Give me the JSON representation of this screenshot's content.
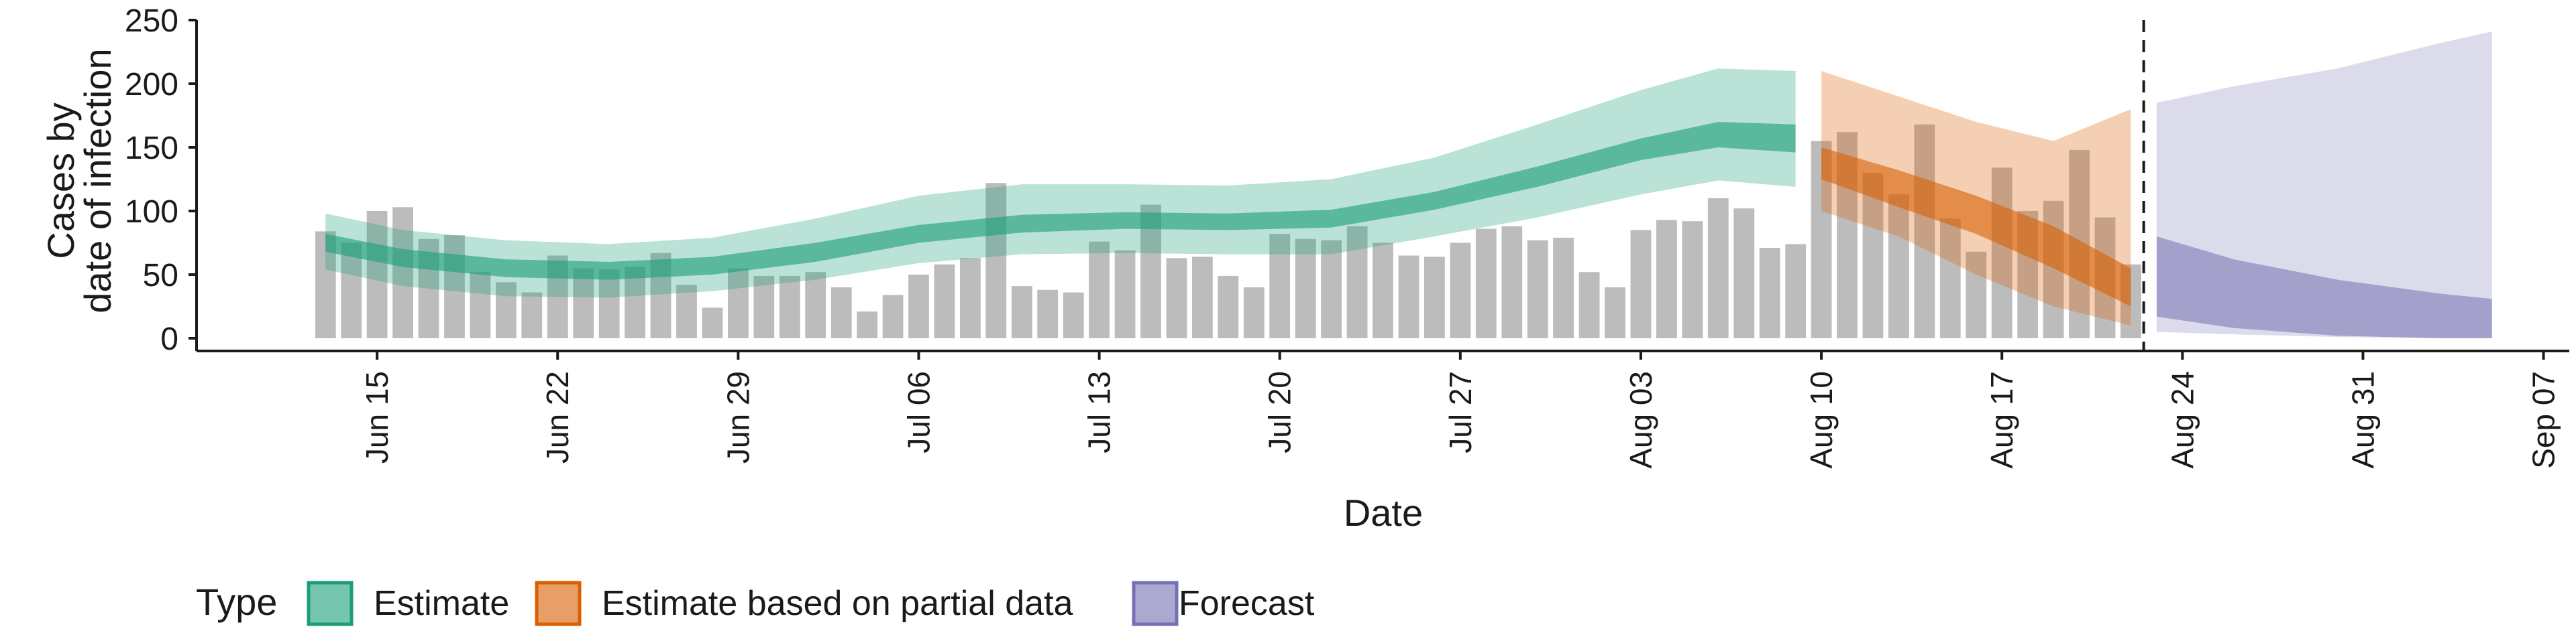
{
  "chart_data": {
    "type": "bar",
    "xlabel": "Date",
    "ylabel": "Cases by date of infection",
    "ylabel_lines": [
      "Cases by",
      "date of infection"
    ],
    "ylim": [
      0,
      250
    ],
    "y_ticks": [
      0,
      50,
      100,
      150,
      200,
      250
    ],
    "x_range": [
      "2020-06-08",
      "2020-09-08"
    ],
    "x_ticks": [
      {
        "date": "2020-06-15",
        "label": "Jun 15"
      },
      {
        "date": "2020-06-22",
        "label": "Jun 22"
      },
      {
        "date": "2020-06-29",
        "label": "Jun 29"
      },
      {
        "date": "2020-07-06",
        "label": "Jul 06"
      },
      {
        "date": "2020-07-13",
        "label": "Jul 13"
      },
      {
        "date": "2020-07-20",
        "label": "Jul 20"
      },
      {
        "date": "2020-07-27",
        "label": "Jul 27"
      },
      {
        "date": "2020-08-03",
        "label": "Aug 03"
      },
      {
        "date": "2020-08-10",
        "label": "Aug 10"
      },
      {
        "date": "2020-08-17",
        "label": "Aug 17"
      },
      {
        "date": "2020-08-24",
        "label": "Aug 24"
      },
      {
        "date": "2020-08-31",
        "label": "Aug 31"
      },
      {
        "date": "2020-09-07",
        "label": "Sep 07"
      }
    ],
    "grid": false,
    "vline_date": "2020-08-22",
    "bars": {
      "start_date": "2020-06-13",
      "values": [
        84,
        75,
        100,
        103,
        78,
        81,
        52,
        44,
        36,
        65,
        55,
        54,
        56,
        67,
        42,
        24,
        55,
        49,
        49,
        52,
        40,
        21,
        34,
        50,
        58,
        63,
        122,
        41,
        38,
        36,
        76,
        69,
        105,
        63,
        64,
        49,
        40,
        82,
        78,
        77,
        88,
        75,
        65,
        64,
        75,
        86,
        88,
        77,
        79,
        52,
        40,
        85,
        93,
        92,
        110,
        102,
        71,
        74,
        155,
        162,
        130,
        113,
        168,
        94,
        68,
        134,
        100,
        108,
        148,
        95,
        58
      ]
    },
    "legend": {
      "title": "Type",
      "position": "bottom",
      "items": [
        {
          "label": "Estimate",
          "fill": "#1b9e77",
          "stroke": "#1b9e77"
        },
        {
          "label": "Estimate based on partial data",
          "fill": "#d95f02",
          "stroke": "#d95f02"
        },
        {
          "label": "Forecast",
          "fill": "#7570b3",
          "stroke": "#7570b3"
        }
      ]
    },
    "series": [
      {
        "name": "Estimate",
        "color": "#1b9e77",
        "dates": [
          "2020-06-13",
          "2020-06-16",
          "2020-06-20",
          "2020-06-24",
          "2020-06-28",
          "2020-07-02",
          "2020-07-06",
          "2020-07-10",
          "2020-07-14",
          "2020-07-18",
          "2020-07-22",
          "2020-07-26",
          "2020-07-30",
          "2020-08-03",
          "2020-08-06",
          "2020-08-09"
        ],
        "inner_upper": [
          82,
          70,
          62,
          60,
          64,
          75,
          89,
          97,
          99,
          98,
          101,
          115,
          135,
          157,
          170,
          168
        ],
        "inner_lower": [
          68,
          56,
          48,
          46,
          50,
          60,
          75,
          83,
          86,
          85,
          87,
          101,
          119,
          140,
          150,
          146
        ],
        "outer_upper": [
          98,
          85,
          77,
          74,
          79,
          94,
          112,
          121,
          121,
          120,
          125,
          142,
          168,
          195,
          212,
          210
        ],
        "outer_lower": [
          54,
          41,
          33,
          32,
          37,
          46,
          59,
          66,
          67,
          66,
          66,
          80,
          95,
          113,
          124,
          119
        ]
      },
      {
        "name": "Estimate based on partial data",
        "color": "#d95f02",
        "dates": [
          "2020-08-10",
          "2020-08-13",
          "2020-08-16",
          "2020-08-19",
          "2020-08-22"
        ],
        "inner_upper": [
          150,
          132,
          112,
          88,
          55
        ],
        "inner_lower": [
          125,
          103,
          82,
          55,
          25
        ],
        "outer_upper": [
          210,
          190,
          170,
          155,
          180
        ],
        "outer_lower": [
          100,
          80,
          50,
          25,
          10
        ]
      },
      {
        "name": "Forecast",
        "color": "#7570b3",
        "dates": [
          "2020-08-23",
          "2020-08-26",
          "2020-08-30",
          "2020-09-03",
          "2020-09-05"
        ],
        "inner_upper": [
          80,
          62,
          46,
          35,
          31
        ],
        "inner_lower": [
          17,
          8,
          2,
          0,
          0
        ],
        "outer_upper": [
          185,
          198,
          212,
          232,
          241
        ],
        "outer_lower": [
          5,
          3,
          1,
          0,
          0
        ]
      }
    ]
  }
}
